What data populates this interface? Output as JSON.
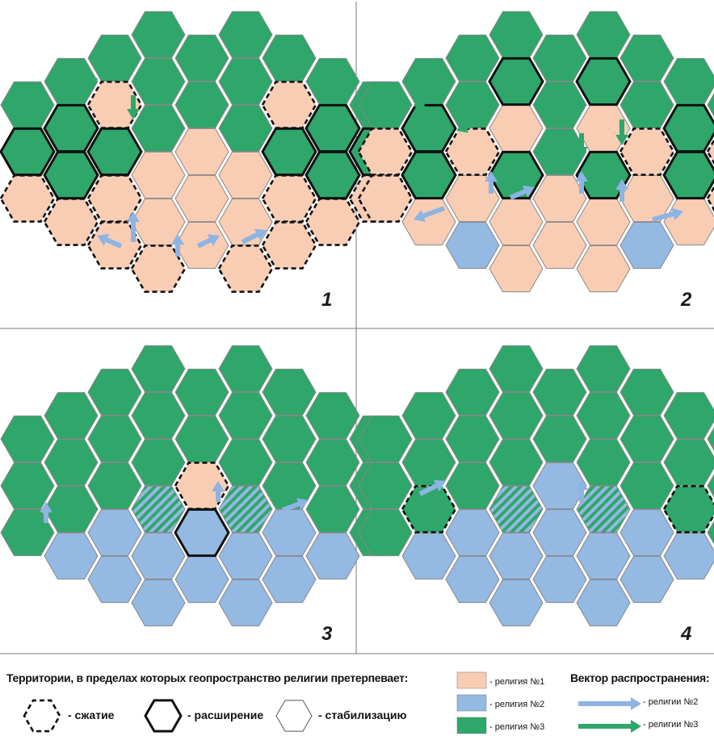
{
  "panels": [
    {
      "number": "1"
    },
    {
      "number": "2"
    },
    {
      "number": "3"
    },
    {
      "number": "4"
    }
  ],
  "legend": {
    "title": "Территории, в пределах которых геопространство религии претерпевает:",
    "border_types": [
      {
        "style": "dashed",
        "label": "- сжатие"
      },
      {
        "style": "thick",
        "label": "- расширение"
      },
      {
        "style": "thin",
        "label": "- стабилизацию"
      }
    ],
    "religions": [
      {
        "label": "- религия №1",
        "color": "#f9cdb4"
      },
      {
        "label": "- религия №2",
        "color": "#94b9e3"
      },
      {
        "label": "- религия №3",
        "color": "#2fa66a"
      }
    ],
    "vector_title": "Вектор распространения:",
    "vectors": [
      {
        "label": "- религии №2",
        "color": "#8db4e2"
      },
      {
        "label": "- религии №3",
        "color": "#2fa66a"
      }
    ]
  },
  "colors": {
    "religion1": "#f9cdb4",
    "religion2": "#94b9e3",
    "religion3": "#2fa66a",
    "arrow2": "#8db4e2",
    "arrow3": "#2fa66a",
    "grid_line": "#888888"
  }
}
